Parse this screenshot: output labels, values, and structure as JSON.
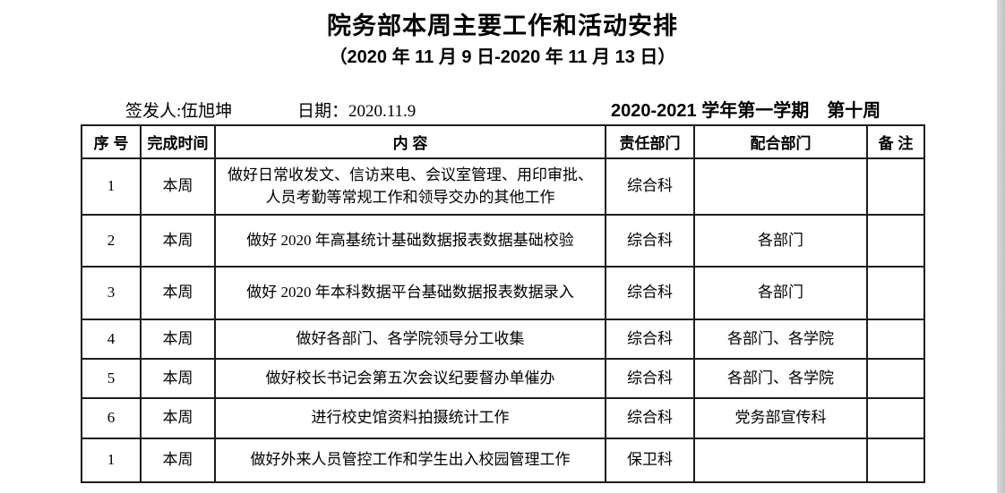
{
  "page": {
    "title": "院务部本周主要工作和活动安排",
    "subtitle": "（2020 年 11 月 9 日-2020 年 11 月 13 日）",
    "meta": {
      "issuer": "签发人:伍旭坤",
      "date": "日期：2020.11.9",
      "semester": "2020-2021 学年第一学期　第十周"
    }
  },
  "table": {
    "headers": {
      "no": "序  号",
      "time": "完成时间",
      "content": "内  容",
      "responsible": "责任部门",
      "cooperating": "配合部门",
      "remarks": "备  注"
    },
    "rows": [
      {
        "no": "1",
        "time": "本周",
        "content": "做好日常收发文、信访来电、会议室管理、用印审批、人员考勤等常规工作和领导交办的其他工作",
        "responsible": "综合科",
        "cooperating": "",
        "remarks": ""
      },
      {
        "no": "2",
        "time": "本周",
        "content": "做好 2020 年高基统计基础数据报表数据基础校验",
        "responsible": "综合科",
        "cooperating": "各部门",
        "remarks": ""
      },
      {
        "no": "3",
        "time": "本周",
        "content": "做好 2020 年本科数据平台基础数据报表数据录入",
        "responsible": "综合科",
        "cooperating": "各部门",
        "remarks": ""
      },
      {
        "no": "4",
        "time": "本周",
        "content": "做好各部门、各学院领导分工收集",
        "responsible": "综合科",
        "cooperating": "各部门、各学院",
        "remarks": ""
      },
      {
        "no": "5",
        "time": "本周",
        "content": "做好校长书记会第五次会议纪要督办单催办",
        "responsible": "综合科",
        "cooperating": "各部门、各学院",
        "remarks": ""
      },
      {
        "no": "6",
        "time": "本周",
        "content": "进行校史馆资料拍摄统计工作",
        "responsible": "综合科",
        "cooperating": "党务部宣传科",
        "remarks": ""
      },
      {
        "no": "1",
        "time": "本周",
        "content": "做好外来人员管控工作和学生出入校园管理工作",
        "responsible": "保卫科",
        "cooperating": "",
        "remarks": ""
      }
    ]
  }
}
